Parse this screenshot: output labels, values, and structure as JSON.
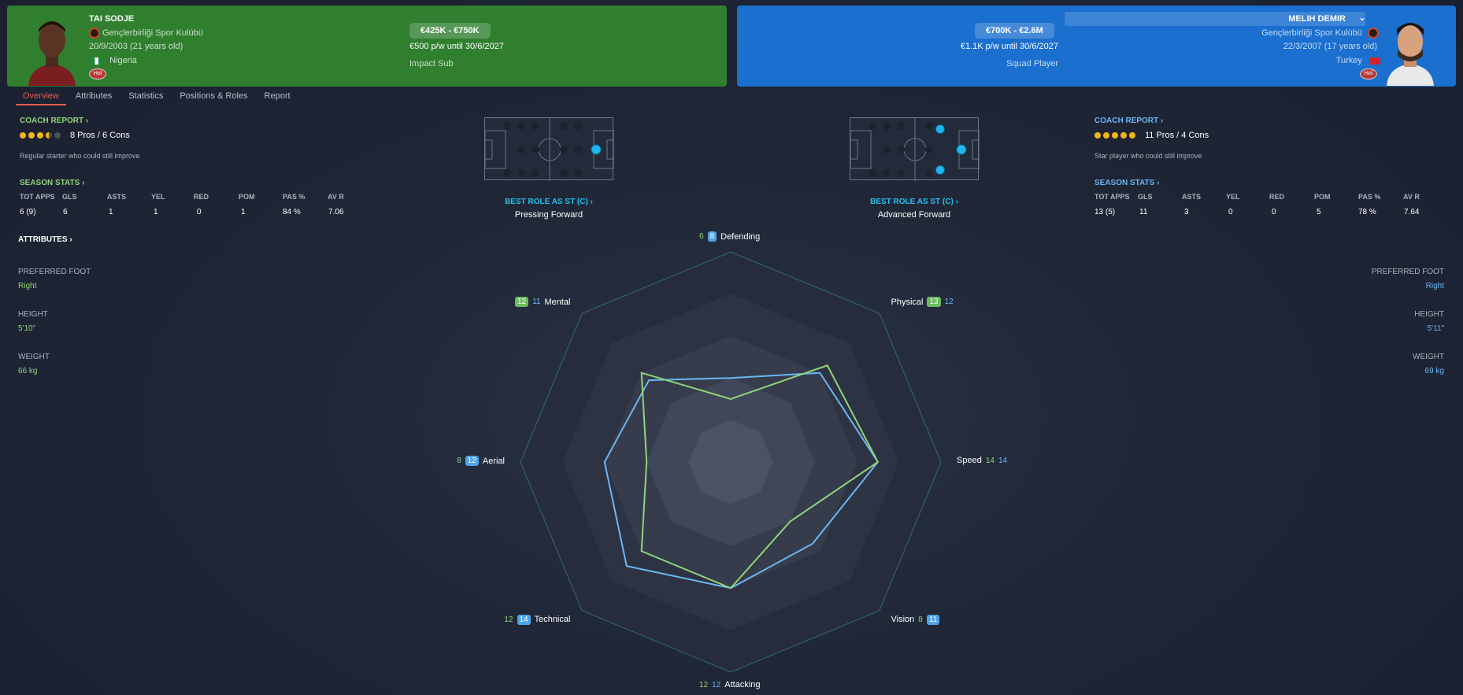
{
  "left_player": {
    "name": "TAI SODJE",
    "club": "Gençlerbirliği Spor Kulübü",
    "dob": "20/9/2003 (21 years old)",
    "nationality": "Nigeria",
    "value": "€425K - €750K",
    "wage": "€500 p/w until 30/6/2027",
    "status": "Impact Sub",
    "personality_badge": "Hol",
    "color": "#8fd47a"
  },
  "right_player": {
    "name": "MELIH DEMIR",
    "club": "Gençlerbirliği Spor Kulübü",
    "dob": "22/3/2007 (17 years old)",
    "nationality": "Turkey",
    "value": "€700K - €2.6M",
    "wage": "€1.1K p/w until 30/6/2027",
    "status": "Squad Player",
    "personality_badge": "Hol",
    "color": "#6bb6f2"
  },
  "tabs": [
    "Overview",
    "Attributes",
    "Statistics",
    "Positions & Roles",
    "Report"
  ],
  "left_panel": {
    "coach_report": "COACH REPORT",
    "stars": 3.5,
    "pros_cons": "8 Pros / 6 Cons",
    "summary": "Regular starter who could still improve",
    "season_stats_head": "SEASON STATS",
    "stats_headers": [
      "TOT APPS",
      "GLS",
      "ASTS",
      "YEL",
      "RED",
      "POM",
      "PAS %",
      "AV R"
    ],
    "stats_values": [
      "6 (9)",
      "6",
      "1",
      "1",
      "0",
      "1",
      "84 %",
      "7.06"
    ],
    "attributes_head": "ATTRIBUTES",
    "preferred_foot_label": "PREFERRED FOOT",
    "preferred_foot": "Right",
    "height_label": "HEIGHT",
    "height": "5'10\"",
    "weight_label": "WEIGHT",
    "weight": "66 kg"
  },
  "right_panel": {
    "coach_report": "COACH REPORT",
    "stars": 5,
    "pros_cons": "11 Pros / 4 Cons",
    "summary": "Star player who could still improve",
    "season_stats_head": "SEASON STATS",
    "stats_headers": [
      "TOT APPS",
      "GLS",
      "ASTS",
      "YEL",
      "RED",
      "POM",
      "PAS %",
      "AV R"
    ],
    "stats_values": [
      "13 (5)",
      "11",
      "3",
      "0",
      "0",
      "5",
      "78 %",
      "7.64"
    ],
    "preferred_foot_label": "PREFERRED FOOT",
    "preferred_foot": "Right",
    "height_label": "HEIGHT",
    "height": "5'11\"",
    "weight_label": "WEIGHT",
    "weight": "69 kg"
  },
  "left_role": {
    "head": "BEST ROLE AS ST (C)",
    "role": "Pressing Forward"
  },
  "right_role": {
    "head": "BEST ROLE AS ST (C)",
    "role": "Advanced Forward"
  },
  "radar": {
    "max": 20,
    "axes": [
      {
        "name": "Defending",
        "left": 6,
        "right": 8,
        "winner": "right"
      },
      {
        "name": "Physical",
        "left": 13,
        "right": 12,
        "winner": "left"
      },
      {
        "name": "Speed",
        "left": 14,
        "right": 14,
        "winner": "none"
      },
      {
        "name": "Vision",
        "left": 8,
        "right": 11,
        "winner": "right"
      },
      {
        "name": "Attacking",
        "left": 12,
        "right": 12,
        "winner": "none"
      },
      {
        "name": "Technical",
        "left": 12,
        "right": 14,
        "winner": "right"
      },
      {
        "name": "Aerial",
        "left": 8,
        "right": 12,
        "winner": "right"
      },
      {
        "name": "Mental",
        "left": 12,
        "right": 11,
        "winner": "left"
      }
    ]
  }
}
